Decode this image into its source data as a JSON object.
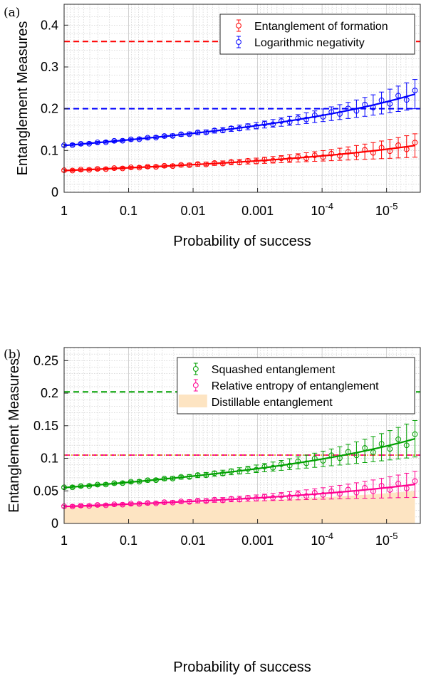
{
  "chart_data": [
    {
      "type": "line",
      "panel_label": "(a)",
      "xlabel": "Probability of success",
      "ylabel": "Entanglement Measures",
      "x_scale": "log-reversed",
      "xlim": [
        1,
        3e-06
      ],
      "ylim": [
        0,
        0.45
      ],
      "x_ticks": [
        {
          "value": 1,
          "label": "1",
          "sup": ""
        },
        {
          "value": 0.1,
          "label": "0.1",
          "sup": ""
        },
        {
          "value": 0.01,
          "label": "0.01",
          "sup": ""
        },
        {
          "value": 0.001,
          "label": "0.001",
          "sup": ""
        },
        {
          "value": 0.0001,
          "label": "10",
          "sup": "-4"
        },
        {
          "value": 1e-05,
          "label": "10",
          "sup": "-5"
        }
      ],
      "y_ticks": [
        {
          "value": 0,
          "label": "0"
        },
        {
          "value": 0.1,
          "label": "0.1"
        },
        {
          "value": 0.2,
          "label": "0.2"
        },
        {
          "value": 0.3,
          "label": "0.3"
        },
        {
          "value": 0.4,
          "label": "0.4"
        }
      ],
      "grid": true,
      "legend_position": "top-right",
      "series": [
        {
          "name": "Entanglement of formation",
          "color": "#ff0000",
          "y_start": 0.052,
          "y_end": 0.112,
          "err_start": 0.003,
          "err_end": 0.028,
          "dashed_level": 0.361
        },
        {
          "name": "Logarithmic negativity",
          "color": "#0000ff",
          "y_start": 0.112,
          "y_end": 0.235,
          "err_start": 0.003,
          "err_end": 0.035,
          "dashed_level": 0.2
        }
      ]
    },
    {
      "type": "line",
      "panel_label": "(b)",
      "xlabel": "Probability of success",
      "ylabel": "Entanglement Measures",
      "x_scale": "log-reversed",
      "xlim": [
        1,
        3e-06
      ],
      "ylim": [
        0,
        0.27
      ],
      "x_ticks": [
        {
          "value": 1,
          "label": "1",
          "sup": ""
        },
        {
          "value": 0.1,
          "label": "0.1",
          "sup": ""
        },
        {
          "value": 0.01,
          "label": "0.01",
          "sup": ""
        },
        {
          "value": 0.001,
          "label": "0.001",
          "sup": ""
        },
        {
          "value": 0.0001,
          "label": "10",
          "sup": "-4"
        },
        {
          "value": 1e-05,
          "label": "10",
          "sup": "-5"
        }
      ],
      "y_ticks": [
        {
          "value": 0,
          "label": "0"
        },
        {
          "value": 0.05,
          "label": "0.05"
        },
        {
          "value": 0.1,
          "label": "0.1"
        },
        {
          "value": 0.15,
          "label": "0.15"
        },
        {
          "value": 0.2,
          "label": "0.2"
        },
        {
          "value": 0.25,
          "label": "0.25"
        }
      ],
      "grid": true,
      "legend_position": "top-right",
      "series": [
        {
          "name": "Squashed entanglement",
          "color": "#00a000",
          "y_start": 0.055,
          "y_end": 0.13,
          "err_start": 0.002,
          "err_end": 0.028,
          "dashed_level": 0.202
        },
        {
          "name": "Relative entropy of entanglement",
          "color": "#ff0090",
          "y_start": 0.026,
          "y_end": 0.06,
          "err_start": 0.002,
          "err_end": 0.02,
          "dashed_level": 0.105
        }
      ],
      "area": {
        "name": "Distillable entanglement",
        "color": "#fde4c2",
        "y_start": 0.026,
        "y_end": 0.05,
        "level_line": 0.105,
        "level_color": "#d4a000"
      }
    }
  ]
}
